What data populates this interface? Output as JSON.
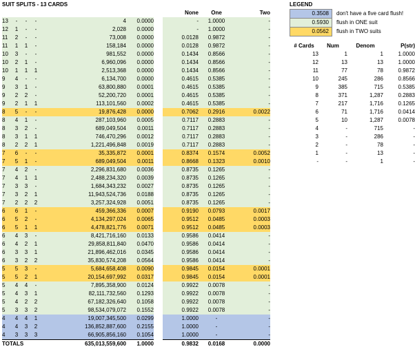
{
  "title": "SUIT SPLITS - 13 CARDS",
  "right_headers": [
    "None",
    "One",
    "Two"
  ],
  "rows": [
    {
      "a": "13",
      "b": "-",
      "c": "-",
      "d": "-",
      "count": "4",
      "prob": "0.0000",
      "none": "-",
      "one": "1.0000",
      "two": "-",
      "bg": "G"
    },
    {
      "a": "12",
      "b": "1",
      "c": "-",
      "d": "-",
      "count": "2,028",
      "prob": "0.0000",
      "none": "-",
      "one": "1.0000",
      "two": "-",
      "bg": "G"
    },
    {
      "a": "11",
      "b": "2",
      "c": "-",
      "d": "-",
      "count": "73,008",
      "prob": "0.0000",
      "none": "0.0128",
      "one": "0.9872",
      "two": "-",
      "bg": "G"
    },
    {
      "a": "11",
      "b": "1",
      "c": "1",
      "d": "-",
      "count": "158,184",
      "prob": "0.0000",
      "none": "0.0128",
      "one": "0.9872",
      "two": "-",
      "bg": "G"
    },
    {
      "a": "10",
      "b": "3",
      "c": "-",
      "d": "-",
      "count": "981,552",
      "prob": "0.0000",
      "none": "0.1434",
      "one": "0.8566",
      "two": "-",
      "bg": "G"
    },
    {
      "a": "10",
      "b": "2",
      "c": "1",
      "d": "-",
      "count": "6,960,096",
      "prob": "0.0000",
      "none": "0.1434",
      "one": "0.8566",
      "two": "-",
      "bg": "G"
    },
    {
      "a": "10",
      "b": "1",
      "c": "1",
      "d": "1",
      "count": "2,513,368",
      "prob": "0.0000",
      "none": "0.1434",
      "one": "0.8566",
      "two": "-",
      "bg": "G"
    },
    {
      "a": "9",
      "b": "4",
      "c": "-",
      "d": "-",
      "count": "6,134,700",
      "prob": "0.0000",
      "none": "0.4615",
      "one": "0.5385",
      "two": "-",
      "bg": "G"
    },
    {
      "a": "9",
      "b": "3",
      "c": "1",
      "d": "-",
      "count": "63,800,880",
      "prob": "0.0001",
      "none": "0.4615",
      "one": "0.5385",
      "two": "-",
      "bg": "G"
    },
    {
      "a": "9",
      "b": "2",
      "c": "2",
      "d": "-",
      "count": "52,200,720",
      "prob": "0.0001",
      "none": "0.4615",
      "one": "0.5385",
      "two": "-",
      "bg": "G"
    },
    {
      "a": "9",
      "b": "2",
      "c": "1",
      "d": "1",
      "count": "113,101,560",
      "prob": "0.0002",
      "none": "0.4615",
      "one": "0.5385",
      "two": "-",
      "bg": "G"
    },
    {
      "a": "8",
      "b": "5",
      "c": "-",
      "d": "-",
      "count": "19,876,428",
      "prob": "0.0000",
      "none": "0.7062",
      "one": "0.2916",
      "two": "0.0022",
      "bg": "Y"
    },
    {
      "a": "8",
      "b": "4",
      "c": "1",
      "d": "-",
      "count": "287,103,960",
      "prob": "0.0005",
      "none": "0.7117",
      "one": "0.2883",
      "two": "-",
      "bg": "G"
    },
    {
      "a": "8",
      "b": "3",
      "c": "2",
      "d": "-",
      "count": "689,049,504",
      "prob": "0.0011",
      "none": "0.7117",
      "one": "0.2883",
      "two": "-",
      "bg": "G"
    },
    {
      "a": "8",
      "b": "3",
      "c": "1",
      "d": "1",
      "count": "746,470,296",
      "prob": "0.0012",
      "none": "0.7117",
      "one": "0.2883",
      "two": "-",
      "bg": "G"
    },
    {
      "a": "8",
      "b": "2",
      "c": "2",
      "d": "1",
      "count": "1,221,496,848",
      "prob": "0.0019",
      "none": "0.7117",
      "one": "0.2883",
      "two": "-",
      "bg": "G"
    },
    {
      "a": "7",
      "b": "6",
      "c": "-",
      "d": "-",
      "count": "35,335,872",
      "prob": "0.0001",
      "none": "0.8374",
      "one": "0.1574",
      "two": "0.0052",
      "bg": "Y"
    },
    {
      "a": "7",
      "b": "5",
      "c": "1",
      "d": "-",
      "count": "689,049,504",
      "prob": "0.0011",
      "none": "0.8668",
      "one": "0.1323",
      "two": "0.0010",
      "bg": "Y"
    },
    {
      "a": "7",
      "b": "4",
      "c": "2",
      "d": "-",
      "count": "2,296,831,680",
      "prob": "0.0036",
      "none": "0.8735",
      "one": "0.1265",
      "two": "-",
      "bg": "G"
    },
    {
      "a": "7",
      "b": "4",
      "c": "1",
      "d": "1",
      "count": "2,488,234,320",
      "prob": "0.0039",
      "none": "0.8735",
      "one": "0.1265",
      "two": "-",
      "bg": "G"
    },
    {
      "a": "7",
      "b": "3",
      "c": "3",
      "d": "-",
      "count": "1,684,343,232",
      "prob": "0.0027",
      "none": "0.8735",
      "one": "0.1265",
      "two": "-",
      "bg": "G"
    },
    {
      "a": "7",
      "b": "3",
      "c": "2",
      "d": "1",
      "count": "11,943,524,736",
      "prob": "0.0188",
      "none": "0.8735",
      "one": "0.1265",
      "two": "-",
      "bg": "G"
    },
    {
      "a": "7",
      "b": "2",
      "c": "2",
      "d": "2",
      "count": "3,257,324,928",
      "prob": "0.0051",
      "none": "0.8735",
      "one": "0.1265",
      "two": "-",
      "bg": "G"
    },
    {
      "a": "6",
      "b": "6",
      "c": "1",
      "d": "-",
      "count": "459,366,336",
      "prob": "0.0007",
      "none": "0.9190",
      "one": "0.0793",
      "two": "0.0017",
      "bg": "Y"
    },
    {
      "a": "6",
      "b": "5",
      "c": "2",
      "d": "-",
      "count": "4,134,297,024",
      "prob": "0.0065",
      "none": "0.9512",
      "one": "0.0485",
      "two": "0.0003",
      "bg": "Y"
    },
    {
      "a": "6",
      "b": "5",
      "c": "1",
      "d": "1",
      "count": "4,478,821,776",
      "prob": "0.0071",
      "none": "0.9512",
      "one": "0.0485",
      "two": "0.0003",
      "bg": "Y"
    },
    {
      "a": "6",
      "b": "4",
      "c": "3",
      "d": "-",
      "count": "8,421,716,160",
      "prob": "0.0133",
      "none": "0.9586",
      "one": "0.0414",
      "two": "-",
      "bg": "G"
    },
    {
      "a": "6",
      "b": "4",
      "c": "2",
      "d": "1",
      "count": "29,858,811,840",
      "prob": "0.0470",
      "none": "0.9586",
      "one": "0.0414",
      "two": "-",
      "bg": "G"
    },
    {
      "a": "6",
      "b": "3",
      "c": "3",
      "d": "1",
      "count": "21,896,462,016",
      "prob": "0.0345",
      "none": "0.9586",
      "one": "0.0414",
      "two": "-",
      "bg": "G"
    },
    {
      "a": "6",
      "b": "3",
      "c": "2",
      "d": "2",
      "count": "35,830,574,208",
      "prob": "0.0564",
      "none": "0.9586",
      "one": "0.0414",
      "two": "-",
      "bg": "G"
    },
    {
      "a": "5",
      "b": "5",
      "c": "3",
      "d": "-",
      "count": "5,684,658,408",
      "prob": "0.0090",
      "none": "0.9845",
      "one": "0.0154",
      "two": "0.0001",
      "bg": "Y"
    },
    {
      "a": "5",
      "b": "5",
      "c": "2",
      "d": "1",
      "count": "20,154,697,992",
      "prob": "0.0317",
      "none": "0.9845",
      "one": "0.0154",
      "two": "0.0001",
      "bg": "Y"
    },
    {
      "a": "5",
      "b": "4",
      "c": "4",
      "d": "-",
      "count": "7,895,358,900",
      "prob": "0.0124",
      "none": "0.9922",
      "one": "0.0078",
      "two": "-",
      "bg": "G"
    },
    {
      "a": "5",
      "b": "4",
      "c": "3",
      "d": "1",
      "count": "82,111,732,560",
      "prob": "0.1293",
      "none": "0.9922",
      "one": "0.0078",
      "two": "-",
      "bg": "G"
    },
    {
      "a": "5",
      "b": "4",
      "c": "2",
      "d": "2",
      "count": "67,182,326,640",
      "prob": "0.1058",
      "none": "0.9922",
      "one": "0.0078",
      "two": "-",
      "bg": "G"
    },
    {
      "a": "5",
      "b": "3",
      "c": "3",
      "d": "2",
      "count": "98,534,079,072",
      "prob": "0.1552",
      "none": "0.9922",
      "one": "0.0078",
      "two": "-",
      "bg": "G"
    },
    {
      "a": "4",
      "b": "4",
      "c": "4",
      "d": "1",
      "count": "19,007,345,500",
      "prob": "0.0299",
      "none": "1.0000",
      "one": "-",
      "two": "-",
      "bg": "B"
    },
    {
      "a": "4",
      "b": "4",
      "c": "3",
      "d": "2",
      "count": "136,852,887,600",
      "prob": "0.2155",
      "none": "1.0000",
      "one": "-",
      "two": "-",
      "bg": "B"
    },
    {
      "a": "4",
      "b": "3",
      "c": "3",
      "d": "3",
      "count": "66,905,856,160",
      "prob": "0.1054",
      "none": "1.0000",
      "one": "-",
      "two": "-",
      "bg": "B"
    }
  ],
  "totals": {
    "label": "TOTALS",
    "count": "635,013,559,600",
    "prob": "1.0000",
    "none": "0.9832",
    "one": "0.0168",
    "two": "0.0000"
  },
  "legend": {
    "title": "LEGEND",
    "items": [
      {
        "value": "0.3508",
        "text": "don't have a five card flush!",
        "bg": "B"
      },
      {
        "value": "0.5930",
        "text": "flush in ONE suit",
        "bg": "G"
      },
      {
        "value": "0.0562",
        "text": "flush in TWO suits",
        "bg": "Y"
      }
    ]
  },
  "pstr": {
    "headers": [
      "# Cards",
      "Num",
      "Denom",
      "P(str)"
    ],
    "rows": [
      {
        "cards": "13",
        "num": "1",
        "denom": "1",
        "p": "1.0000"
      },
      {
        "cards": "12",
        "num": "13",
        "denom": "13",
        "p": "1.0000"
      },
      {
        "cards": "11",
        "num": "77",
        "denom": "78",
        "p": "0.9872"
      },
      {
        "cards": "10",
        "num": "245",
        "denom": "286",
        "p": "0.8566"
      },
      {
        "cards": "9",
        "num": "385",
        "denom": "715",
        "p": "0.5385"
      },
      {
        "cards": "8",
        "num": "371",
        "denom": "1,287",
        "p": "0.2883"
      },
      {
        "cards": "7",
        "num": "217",
        "denom": "1,716",
        "p": "0.1265"
      },
      {
        "cards": "6",
        "num": "71",
        "denom": "1,716",
        "p": "0.0414"
      },
      {
        "cards": "5",
        "num": "10",
        "denom": "1,287",
        "p": "0.0078"
      },
      {
        "cards": "4",
        "num": "-",
        "denom": "715",
        "p": "-"
      },
      {
        "cards": "3",
        "num": "-",
        "denom": "286",
        "p": "-"
      },
      {
        "cards": "2",
        "num": "-",
        "denom": "78",
        "p": "-"
      },
      {
        "cards": "1",
        "num": "-",
        "denom": "13",
        "p": "-"
      },
      {
        "cards": "-",
        "num": "-",
        "denom": "1",
        "p": "-"
      }
    ]
  },
  "colors": {
    "green": "#e2efda",
    "yellow": "#ffd966",
    "blue": "#b4c6e7"
  }
}
